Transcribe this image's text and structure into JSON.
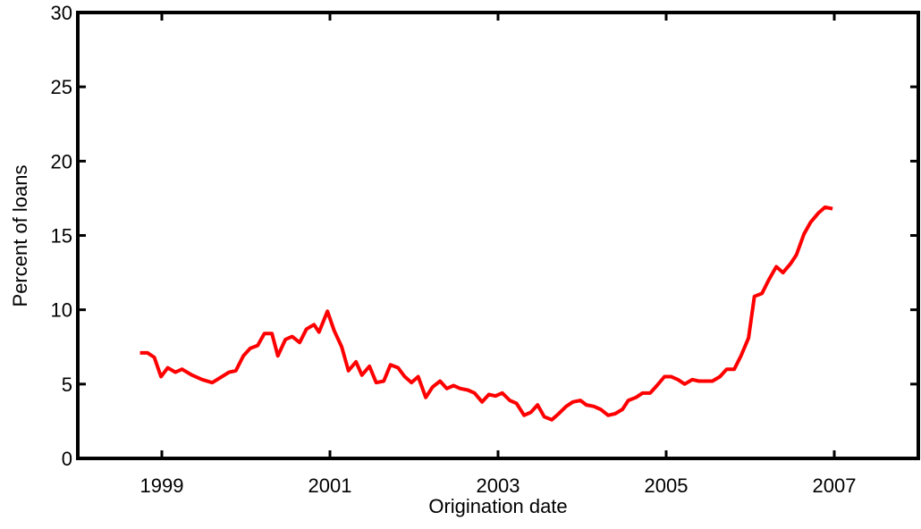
{
  "chart_data": {
    "type": "line",
    "x_label": "Origination date",
    "y_label": "Percent of loans",
    "xlim": [
      1998,
      2008
    ],
    "xticks": [
      1999,
      2001,
      2003,
      2005,
      2007
    ],
    "ylim": [
      0,
      30
    ],
    "yticks": [
      0,
      5,
      10,
      15,
      20,
      25,
      30
    ],
    "series": [
      {
        "color": "#ff0000",
        "x": [
          1998.74,
          1998.83,
          1998.91,
          1998.99,
          1999.07,
          1999.16,
          1999.24,
          1999.36,
          1999.48,
          1999.6,
          1999.8,
          1999.88,
          1999.97,
          2000.05,
          2000.14,
          2000.22,
          2000.31,
          2000.38,
          2000.47,
          2000.55,
          2000.64,
          2000.72,
          2000.81,
          2000.87,
          2000.97,
          2001.05,
          2001.14,
          2001.22,
          2001.31,
          2001.38,
          2001.47,
          2001.55,
          2001.64,
          2001.72,
          2001.81,
          2001.89,
          2001.97,
          2002.05,
          2002.14,
          2002.22,
          2002.31,
          2002.39,
          2002.47,
          2002.55,
          2002.64,
          2002.72,
          2002.81,
          2002.89,
          2002.97,
          2003.05,
          2003.14,
          2003.22,
          2003.31,
          2003.39,
          2003.47,
          2003.55,
          2003.64,
          2003.72,
          2003.81,
          2003.89,
          2003.98,
          2004.05,
          2004.14,
          2004.22,
          2004.31,
          2004.39,
          2004.48,
          2004.55,
          2004.64,
          2004.72,
          2004.81,
          2004.89,
          2004.98,
          2005.06,
          2005.14,
          2005.22,
          2005.31,
          2005.39,
          2005.48,
          2005.55,
          2005.64,
          2005.72,
          2005.81,
          2005.89,
          2005.98,
          2006.05,
          2006.14,
          2006.22,
          2006.31,
          2006.39,
          2006.48,
          2006.55,
          2006.64,
          2006.72,
          2006.81,
          2006.89,
          2006.98
        ],
        "values": [
          7.1,
          7.1,
          6.8,
          5.5,
          6.1,
          5.8,
          6.0,
          5.6,
          5.3,
          5.1,
          5.8,
          5.9,
          6.9,
          7.4,
          7.6,
          8.4,
          8.4,
          6.9,
          8.0,
          8.2,
          7.8,
          8.7,
          9.0,
          8.5,
          9.9,
          8.6,
          7.5,
          5.9,
          6.5,
          5.6,
          6.2,
          5.1,
          5.2,
          6.3,
          6.1,
          5.5,
          5.1,
          5.5,
          4.1,
          4.8,
          5.2,
          4.7,
          4.9,
          4.7,
          4.6,
          4.4,
          3.8,
          4.3,
          4.2,
          4.4,
          3.9,
          3.7,
          2.9,
          3.1,
          3.6,
          2.8,
          2.6,
          3.0,
          3.5,
          3.8,
          3.9,
          3.6,
          3.5,
          3.3,
          2.9,
          3.0,
          3.3,
          3.9,
          4.1,
          4.4,
          4.4,
          4.9,
          5.5,
          5.5,
          5.3,
          5.0,
          5.3,
          5.2,
          5.2,
          5.2,
          5.5,
          6.0,
          6.0,
          6.9,
          8.1,
          10.9,
          11.1,
          12.0,
          12.9,
          12.5,
          13.1,
          13.7,
          15.1,
          15.9,
          16.5,
          16.9,
          16.8
        ]
      }
    ]
  }
}
